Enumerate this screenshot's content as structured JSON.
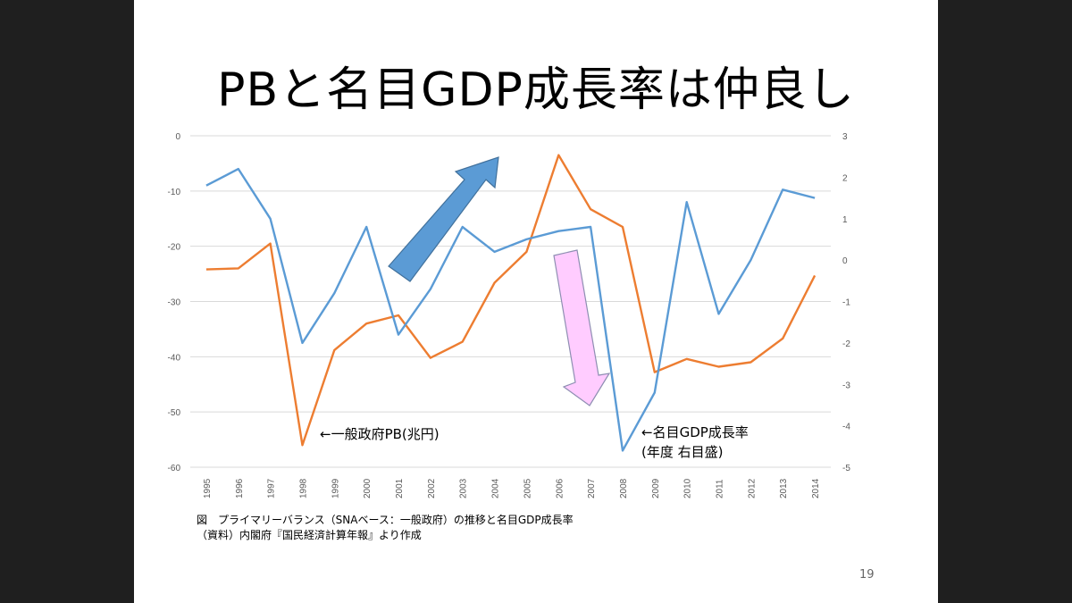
{
  "slide": {
    "title": "PBと名目GDP成長率は仲良し",
    "caption_line1": "図　プライマリーバランス（SNAベース：一般政府）の推移と名目GDP成長率",
    "caption_line2": "（資料）内閣府『国民経済計算年報』より作成",
    "page_number": "19"
  },
  "chart_data": {
    "type": "line",
    "x": [
      "1995",
      "1996",
      "1997",
      "1998",
      "1999",
      "2000",
      "2001",
      "2002",
      "2003",
      "2004",
      "2005",
      "2006",
      "2007",
      "2008",
      "2009",
      "2010",
      "2011",
      "2012",
      "2013",
      "2014"
    ],
    "left_axis": {
      "ylim": [
        -60,
        0
      ],
      "ticks": [
        "0",
        "-10",
        "-20",
        "-30",
        "-40",
        "-50",
        "-60"
      ]
    },
    "right_axis": {
      "ylim": [
        -5,
        3
      ],
      "ticks": [
        "3",
        "2",
        "1",
        "0",
        "-1",
        "-2",
        "-3",
        "-4",
        "-5"
      ]
    },
    "grid": true,
    "series": [
      {
        "axis": "left",
        "color": "#ED7D31",
        "values": [
          -24.2,
          -24.0,
          -19.5,
          -56.0,
          -38.8,
          -34.0,
          -32.5,
          -40.2,
          -37.3,
          -26.6,
          -21.0,
          -3.5,
          -13.3,
          -16.5,
          -42.8,
          -40.4,
          -41.8,
          -41.0,
          -36.7,
          -25.3
        ]
      },
      {
        "axis": "right",
        "color": "#5B9BD5",
        "values": [
          1.8,
          2.2,
          1.0,
          -2.0,
          -0.8,
          0.8,
          -1.8,
          -0.7,
          0.8,
          0.2,
          0.5,
          0.7,
          0.8,
          -4.6,
          -3.2,
          1.4,
          -1.3,
          0.0,
          1.7,
          1.5
        ]
      }
    ],
    "annotations": {
      "left_series_label": "←一般政府PB(兆円)",
      "right_series_label_line1": "←名目GDP成長率",
      "right_series_label_line2": "(年度 右目盛)"
    },
    "arrows": {
      "up_color": "#5B9BD5",
      "down_color": "#FFCCFF"
    }
  }
}
